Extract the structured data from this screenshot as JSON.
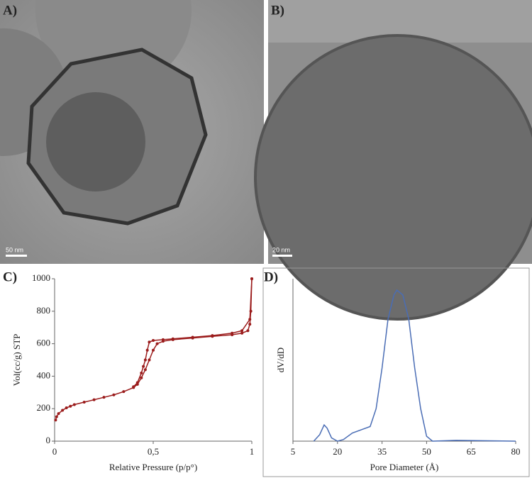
{
  "panels": [
    {
      "label": "A)",
      "scale_bar": "50 nm"
    },
    {
      "label": "B)",
      "scale_bar": "20 nm"
    }
  ],
  "chart_data": [
    {
      "type": "line",
      "label": "C)",
      "xlabel": "Relative Pressure (p/p°)",
      "ylabel": "Vol(cc/g) STP",
      "xlim": [
        0,
        1
      ],
      "xticks": [
        0,
        {
          "value": 0.5,
          "label": "0,5"
        },
        1
      ],
      "ylim": [
        0,
        1000
      ],
      "yticks": [
        0,
        200,
        400,
        600,
        800,
        1000
      ],
      "markers": true,
      "series": [
        {
          "color": "#9b1c1c",
          "x": [
            0.005,
            0.01,
            0.02,
            0.04,
            0.06,
            0.08,
            0.1,
            0.15,
            0.2,
            0.25,
            0.3,
            0.35,
            0.4,
            0.42,
            0.44,
            0.46,
            0.48,
            0.5,
            0.52,
            0.55,
            0.6,
            0.7,
            0.8,
            0.9,
            0.95,
            0.98,
            0.99,
            0.995,
            1
          ],
          "values": [
            130,
            150,
            170,
            190,
            205,
            215,
            225,
            240,
            255,
            270,
            285,
            305,
            330,
            350,
            390,
            440,
            500,
            560,
            600,
            615,
            625,
            635,
            645,
            655,
            665,
            680,
            720,
            800,
            1000
          ]
        },
        {
          "color": "#9b1c1c",
          "x": [
            1,
            0.99,
            0.95,
            0.9,
            0.8,
            0.7,
            0.6,
            0.55,
            0.5,
            0.48,
            0.47,
            0.46,
            0.45,
            0.44,
            0.42,
            0.4
          ],
          "values": [
            1000,
            750,
            680,
            665,
            650,
            640,
            630,
            625,
            620,
            610,
            560,
            500,
            460,
            420,
            360,
            335
          ]
        }
      ]
    },
    {
      "type": "line",
      "label": "D)",
      "xlabel": "Pore Diameter (Å)",
      "ylabel": "dV/dD",
      "xlim": [
        5,
        80
      ],
      "xticks": [
        5,
        20,
        35,
        50,
        65,
        80
      ],
      "ylim": [
        0,
        1
      ],
      "markers": false,
      "frame": true,
      "series": [
        {
          "color": "#4a6db5",
          "x": [
            12,
            14,
            15.5,
            16.5,
            18,
            20,
            22,
            25,
            28,
            31,
            33,
            35,
            37,
            39,
            40,
            42,
            44,
            46,
            48,
            50,
            52,
            60,
            80
          ],
          "values": [
            0,
            0.04,
            0.1,
            0.08,
            0.02,
            0,
            0.01,
            0.05,
            0.07,
            0.09,
            0.2,
            0.45,
            0.75,
            0.9,
            0.93,
            0.9,
            0.75,
            0.45,
            0.2,
            0.03,
            0,
            0.005,
            0
          ]
        }
      ]
    }
  ]
}
